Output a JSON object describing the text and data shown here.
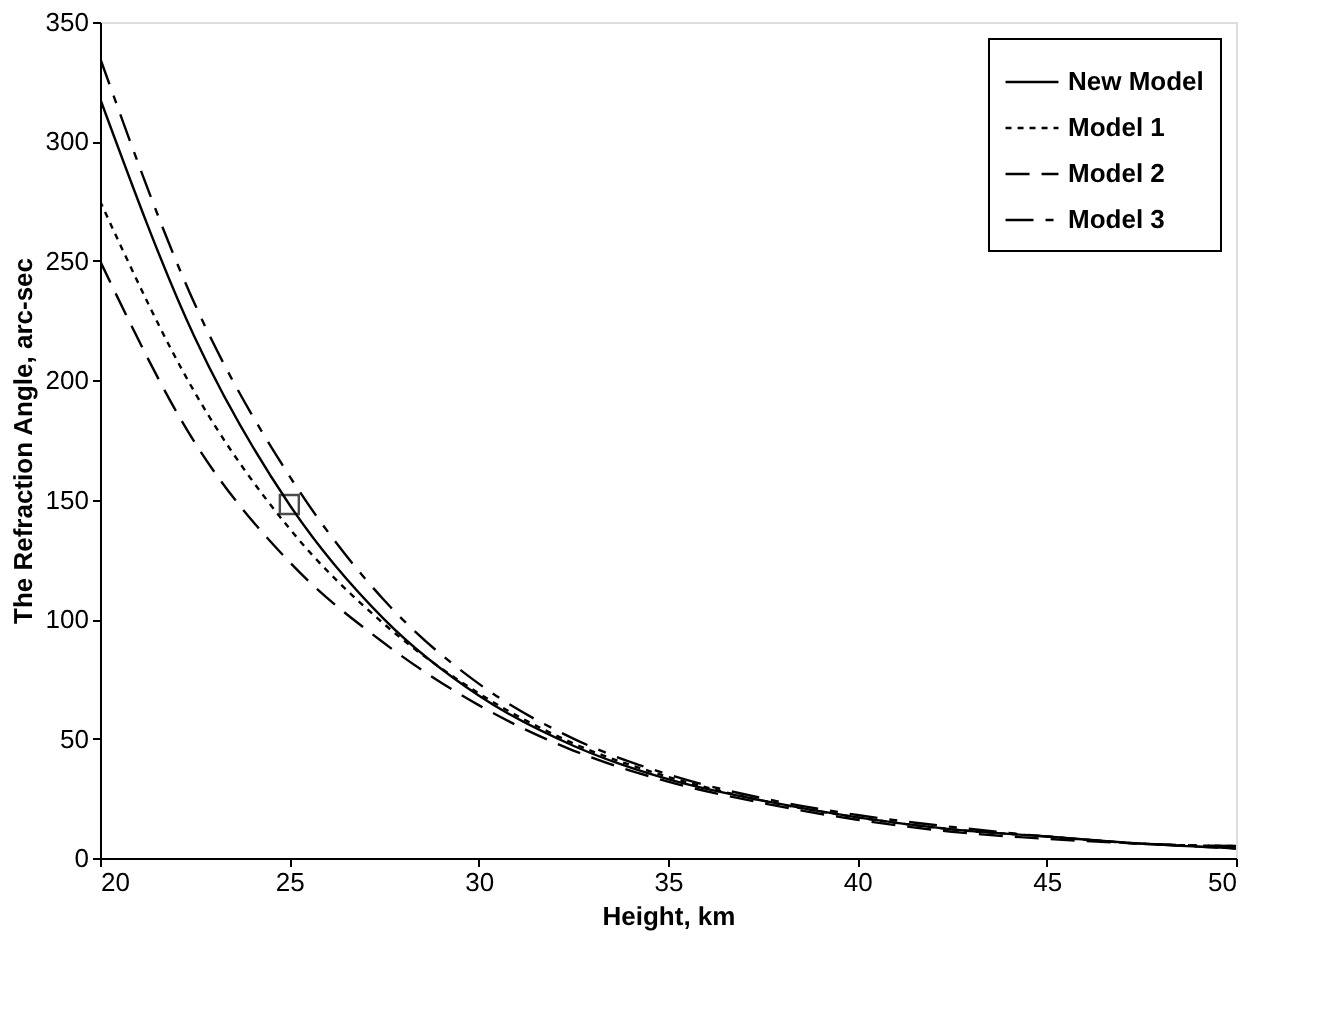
{
  "chart_data": {
    "type": "line",
    "xlabel": "Height, km",
    "ylabel": "The Refraction Angle, arc-sec",
    "x": [
      20,
      22.5,
      25,
      27.5,
      30,
      32.5,
      35,
      37.5,
      40,
      42.5,
      45,
      47.5,
      50
    ],
    "series": [
      {
        "name": "New Model",
        "color": "#000000",
        "line_style": "solid",
        "values": [
          318,
          218,
          148,
          100,
          68,
          47,
          33,
          24,
          17,
          12,
          9,
          6,
          4
        ]
      },
      {
        "name": "Model 1",
        "color": "#000000",
        "line_style": "dotted",
        "values": [
          275,
          195,
          138,
          98,
          69,
          48,
          34,
          24,
          17,
          12,
          9,
          6,
          5
        ]
      },
      {
        "name": "Model 2",
        "color": "#000000",
        "line_style": "dashed",
        "values": [
          250,
          174,
          124,
          90,
          64,
          45,
          32,
          23,
          16,
          11,
          8,
          6,
          4
        ]
      },
      {
        "name": "Model 3",
        "color": "#000000",
        "line_style": "dashdot",
        "values": [
          335,
          232,
          160,
          108,
          73,
          50,
          35,
          25,
          18,
          13,
          9,
          6,
          5
        ]
      },
      {
        "type": "scatter",
        "marker": "square",
        "color": "#000000",
        "x": [
          25
        ],
        "values": [
          148
        ]
      }
    ],
    "xlim": [
      20,
      50
    ],
    "xticks": [
      20,
      25,
      30,
      35,
      40,
      45,
      50
    ],
    "ylim": [
      0,
      350
    ],
    "yticks": [
      0,
      50,
      100,
      150,
      200,
      250,
      300,
      350
    ],
    "grid": false,
    "legend": "top right"
  }
}
